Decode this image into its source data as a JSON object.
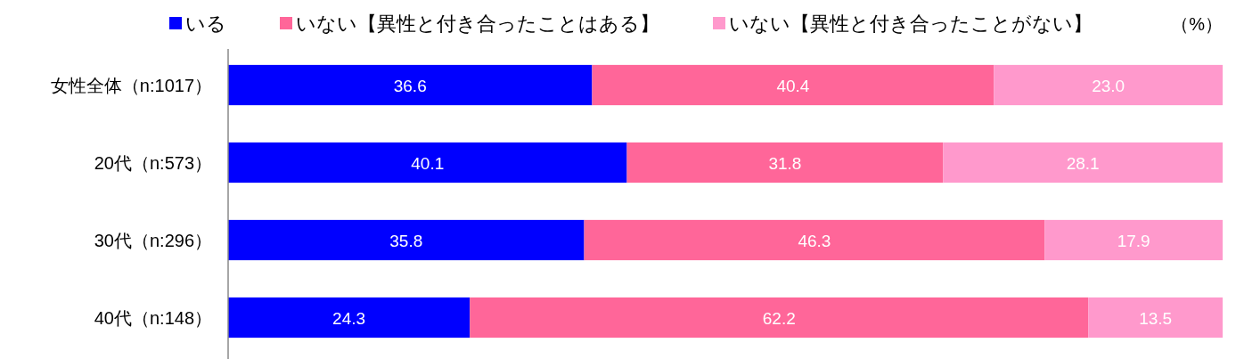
{
  "chart_data": {
    "type": "bar",
    "orientation": "horizontal",
    "stacked": true,
    "legend": "top",
    "xlim": [
      0,
      100
    ],
    "tick_labels": "y",
    "categories": [
      "女性全体（n:1017）",
      "20代（n:573）",
      "30代（n:296）",
      "40代（n:148）"
    ],
    "series": [
      {
        "name": "いる",
        "color": "#0000ff",
        "values": [
          36.6,
          40.1,
          35.8,
          24.3
        ],
        "value_labels": [
          "36.6",
          "40.1",
          "35.8",
          "24.3"
        ]
      },
      {
        "name": "いない【異性と付き合ったことはある】",
        "color": "#ff6699",
        "values": [
          40.4,
          31.8,
          46.3,
          62.2
        ],
        "value_labels": [
          "40.4",
          "31.8",
          "46.3",
          "62.2"
        ]
      },
      {
        "name": "いない【異性と付き合ったことがない】",
        "color": "#ff99cc",
        "values": [
          23.0,
          28.1,
          17.9,
          13.5
        ],
        "value_labels": [
          "23.0",
          "28.1",
          "17.9",
          "13.5"
        ]
      }
    ],
    "annotations": [
      "（%）"
    ]
  }
}
